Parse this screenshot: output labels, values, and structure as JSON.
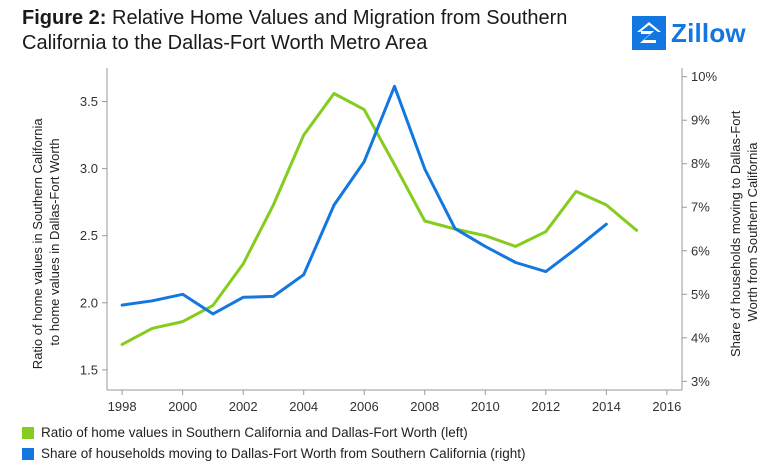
{
  "header": {
    "figure_label": "Figure 2:",
    "title_text": " Relative Home Values and Migration from Southern California to the Dallas-Fort Worth Metro Area",
    "brand": "Zillow",
    "logo_icon": "zillow-house-icon"
  },
  "colors": {
    "left_series": "#85cc1e",
    "right_series": "#1477e0",
    "axis": "#999999"
  },
  "chart_data": {
    "type": "line",
    "title": "Relative Home Values and Migration from Southern California to the Dallas-Fort Worth Metro Area",
    "xlabel": "",
    "ylabel_left": "Ratio of home values in Southern California to home values in Dallas-Fort Worth",
    "ylabel_right": "Share of households moving to Dallas-Fort Worth from Southern California",
    "xlim": [
      1997.5,
      2016.5
    ],
    "x_ticks": [
      1998,
      2000,
      2002,
      2004,
      2006,
      2008,
      2010,
      2012,
      2014,
      2016
    ],
    "x_tick_labels": [
      "1998",
      "2000",
      "2002",
      "2004",
      "2006",
      "2008",
      "2010",
      "2012",
      "2014",
      "2016"
    ],
    "ylim_left": [
      1.35,
      3.75
    ],
    "y_ticks_left": [
      1.5,
      2.0,
      2.5,
      3.0,
      3.5
    ],
    "y_tick_labels_left": [
      "1.5",
      "2.0",
      "2.5",
      "3.0",
      "3.5"
    ],
    "ylim_right": [
      0.028,
      0.102
    ],
    "y_ticks_right": [
      0.03,
      0.04,
      0.05,
      0.06,
      0.07,
      0.08,
      0.09,
      0.1
    ],
    "y_tick_labels_right": [
      "3%",
      "4%",
      "5%",
      "6%",
      "7%",
      "8%",
      "9%",
      "10%"
    ],
    "grid": false,
    "legend_position": "bottom",
    "series": [
      {
        "name": "Ratio of home values in Southern California and Dallas-Fort Worth (left)",
        "axis": "left",
        "x": [
          1998,
          1999,
          2000,
          2001,
          2002,
          2003,
          2004,
          2005,
          2006,
          2007,
          2008,
          2009,
          2010,
          2011,
          2012,
          2013,
          2014,
          2015
        ],
        "values": [
          1.69,
          1.81,
          1.86,
          1.98,
          2.29,
          2.73,
          3.25,
          3.56,
          3.44,
          3.03,
          2.61,
          2.55,
          2.5,
          2.42,
          2.53,
          2.83,
          2.73,
          2.54
        ]
      },
      {
        "name": "Share of households moving to Dallas-Fort Worth from Southern California (right)",
        "axis": "right",
        "x": [
          1998,
          1999,
          2000,
          2001,
          2002,
          2003,
          2004,
          2005,
          2006,
          2007,
          2008,
          2009,
          2010,
          2011,
          2012,
          2013,
          2014
        ],
        "values": [
          0.0475,
          0.0485,
          0.05,
          0.0455,
          0.0493,
          0.0495,
          0.0545,
          0.0705,
          0.0805,
          0.0978,
          0.0788,
          0.0651,
          0.061,
          0.0573,
          0.0552,
          0.0605,
          0.0661
        ]
      }
    ]
  }
}
